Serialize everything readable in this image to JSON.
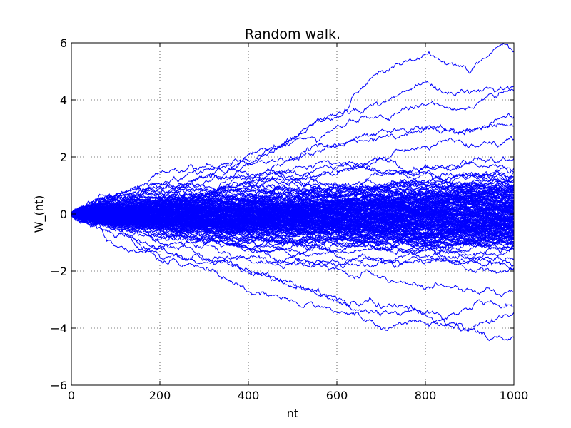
{
  "chart_data": {
    "type": "line",
    "title": "Random walk.",
    "xlabel": "nt",
    "ylabel": "W_(nt)",
    "xlim": [
      0,
      1000
    ],
    "ylim": [
      -6,
      6
    ],
    "x_ticks": [
      "0",
      "200",
      "400",
      "600",
      "800",
      "1000"
    ],
    "y_ticks": [
      "−6",
      "−4",
      "−2",
      "0",
      "2",
      "4",
      "6"
    ],
    "grid": true,
    "legend": "none",
    "line_color": "#0000ff",
    "n_steps": 1000,
    "series": [
      {
        "values": [
          [
            0,
            0
          ],
          [
            100,
            0.6
          ],
          [
            200,
            1.2
          ],
          [
            300,
            1.6
          ],
          [
            400,
            2.2
          ],
          [
            500,
            2.6
          ],
          [
            600,
            3.6
          ],
          [
            700,
            5.0
          ],
          [
            750,
            5.3
          ],
          [
            800,
            5.5
          ],
          [
            900,
            5.3
          ],
          [
            980,
            6.0
          ],
          [
            1000,
            5.7
          ]
        ]
      },
      {
        "values": [
          [
            0,
            0
          ],
          [
            100,
            0.5
          ],
          [
            200,
            1.0
          ],
          [
            300,
            1.5
          ],
          [
            400,
            1.8
          ],
          [
            500,
            2.6
          ],
          [
            600,
            3.5
          ],
          [
            700,
            4.0
          ],
          [
            800,
            4.5
          ],
          [
            900,
            4.2
          ],
          [
            1000,
            4.5
          ]
        ]
      },
      {
        "values": [
          [
            0,
            0
          ],
          [
            100,
            0.6
          ],
          [
            200,
            1.1
          ],
          [
            300,
            1.4
          ],
          [
            400,
            1.9
          ],
          [
            500,
            2.4
          ],
          [
            600,
            3.0
          ],
          [
            700,
            3.4
          ],
          [
            800,
            3.6
          ],
          [
            900,
            3.9
          ],
          [
            1000,
            4.2
          ]
        ]
      },
      {
        "values": [
          [
            0,
            0
          ],
          [
            100,
            0.4
          ],
          [
            200,
            0.9
          ],
          [
            300,
            1.2
          ],
          [
            400,
            1.6
          ],
          [
            500,
            2.0
          ],
          [
            600,
            2.4
          ],
          [
            700,
            2.8
          ],
          [
            800,
            3.0
          ],
          [
            900,
            3.2
          ],
          [
            1000,
            3.5
          ]
        ]
      },
      {
        "values": [
          [
            0,
            0
          ],
          [
            100,
            0.5
          ],
          [
            200,
            0.8
          ],
          [
            300,
            1.0
          ],
          [
            400,
            1.5
          ],
          [
            500,
            1.8
          ],
          [
            600,
            2.2
          ],
          [
            700,
            2.5
          ],
          [
            800,
            2.9
          ],
          [
            900,
            3.1
          ],
          [
            1000,
            3.3
          ]
        ]
      },
      {
        "values": [
          [
            0,
            0
          ],
          [
            100,
            0.3
          ],
          [
            200,
            0.6
          ],
          [
            300,
            0.9
          ],
          [
            400,
            1.2
          ],
          [
            500,
            1.5
          ],
          [
            600,
            1.8
          ],
          [
            700,
            2.0
          ],
          [
            800,
            2.3
          ],
          [
            900,
            2.6
          ],
          [
            1000,
            2.8
          ]
        ]
      },
      {
        "values": [
          [
            0,
            0
          ],
          [
            100,
            0.2
          ],
          [
            200,
            0.5
          ],
          [
            300,
            0.6
          ],
          [
            400,
            0.8
          ],
          [
            500,
            1.0
          ],
          [
            600,
            1.3
          ],
          [
            700,
            1.4
          ],
          [
            800,
            1.6
          ],
          [
            900,
            1.8
          ],
          [
            1000,
            2.0
          ]
        ]
      },
      {
        "values": [
          [
            0,
            0
          ],
          [
            100,
            0.1
          ],
          [
            200,
            0.2
          ],
          [
            300,
            0.4
          ],
          [
            400,
            0.5
          ],
          [
            500,
            0.7
          ],
          [
            600,
            0.8
          ],
          [
            700,
            0.9
          ],
          [
            800,
            1.0
          ],
          [
            900,
            1.1
          ],
          [
            1000,
            1.2
          ]
        ]
      },
      {
        "values": [
          [
            0,
            0
          ],
          [
            100,
            0.0
          ],
          [
            200,
            0.1
          ],
          [
            300,
            0.0
          ],
          [
            400,
            0.2
          ],
          [
            500,
            0.1
          ],
          [
            600,
            0.3
          ],
          [
            700,
            0.2
          ],
          [
            800,
            0.4
          ],
          [
            900,
            0.3
          ],
          [
            1000,
            0.5
          ]
        ]
      },
      {
        "values": [
          [
            0,
            0
          ],
          [
            100,
            -0.1
          ],
          [
            200,
            -0.2
          ],
          [
            300,
            -0.3
          ],
          [
            400,
            -0.4
          ],
          [
            500,
            -0.5
          ],
          [
            600,
            -0.6
          ],
          [
            700,
            -0.7
          ],
          [
            800,
            -0.8
          ],
          [
            900,
            -0.9
          ],
          [
            1000,
            -1.0
          ]
        ]
      },
      {
        "values": [
          [
            0,
            0
          ],
          [
            100,
            -0.3
          ],
          [
            200,
            -0.5
          ],
          [
            300,
            -0.7
          ],
          [
            400,
            -0.9
          ],
          [
            500,
            -1.1
          ],
          [
            600,
            -1.3
          ],
          [
            700,
            -1.5
          ],
          [
            800,
            -1.7
          ],
          [
            900,
            -1.8
          ],
          [
            1000,
            -2.0
          ]
        ]
      },
      {
        "values": [
          [
            0,
            0
          ],
          [
            100,
            -0.4
          ],
          [
            200,
            -0.8
          ],
          [
            300,
            -1.1
          ],
          [
            400,
            -1.4
          ],
          [
            500,
            -1.7
          ],
          [
            600,
            -2.0
          ],
          [
            700,
            -2.2
          ],
          [
            800,
            -2.5
          ],
          [
            900,
            -2.7
          ],
          [
            1000,
            -3.0
          ]
        ]
      },
      {
        "values": [
          [
            0,
            0
          ],
          [
            100,
            -0.6
          ],
          [
            200,
            -1.2
          ],
          [
            300,
            -1.6
          ],
          [
            400,
            -2.0
          ],
          [
            500,
            -2.4
          ],
          [
            600,
            -2.8
          ],
          [
            700,
            -3.2
          ],
          [
            800,
            -3.4
          ],
          [
            900,
            -3.5
          ],
          [
            1000,
            -3.3
          ]
        ]
      },
      {
        "values": [
          [
            0,
            0
          ],
          [
            100,
            -0.9
          ],
          [
            200,
            -1.5
          ],
          [
            300,
            -2.0
          ],
          [
            400,
            -2.6
          ],
          [
            500,
            -3.0
          ],
          [
            600,
            -3.4
          ],
          [
            700,
            -3.8
          ],
          [
            800,
            -3.8
          ],
          [
            900,
            -3.9
          ],
          [
            1000,
            -3.5
          ]
        ]
      },
      {
        "values": [
          [
            0,
            0
          ],
          [
            100,
            -0.6
          ],
          [
            200,
            -1.3
          ],
          [
            300,
            -1.9
          ],
          [
            400,
            -2.2
          ],
          [
            500,
            -2.5
          ],
          [
            600,
            -3.0
          ],
          [
            700,
            -3.5
          ],
          [
            800,
            -3.6
          ],
          [
            900,
            -4.0
          ],
          [
            950,
            -4.6
          ],
          [
            1000,
            -4.5
          ]
        ]
      }
    ]
  }
}
